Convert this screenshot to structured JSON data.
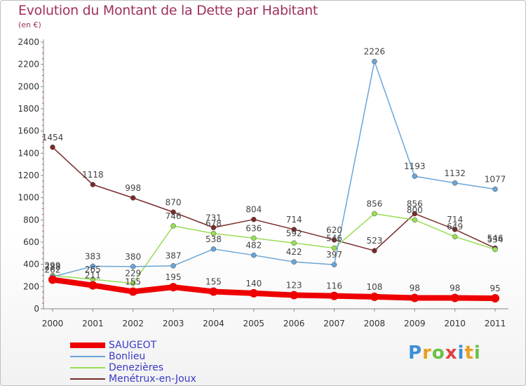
{
  "title": "Evolution du Montant de la Dette par Habitant",
  "subtitle": "(en €)",
  "logo": {
    "text": "Proxiti",
    "letters": [
      {
        "ch": "P",
        "color": "#3a8fd6"
      },
      {
        "ch": "r",
        "color": "#e8a020"
      },
      {
        "ch": "o",
        "color": "#6cc04a"
      },
      {
        "ch": "x",
        "color": "#e04040"
      },
      {
        "ch": "i",
        "color": "#3a8fd6"
      },
      {
        "ch": "t",
        "color": "#e8a020"
      },
      {
        "ch": "i",
        "color": "#6cc04a"
      }
    ]
  },
  "chart_data": {
    "type": "line",
    "title": "Evolution du Montant de la Dette par Habitant",
    "ylabel": "(en €)",
    "xlabel": "",
    "ylim": [
      0,
      2400
    ],
    "yticks": [
      0,
      200,
      400,
      600,
      800,
      1000,
      1200,
      1400,
      1600,
      1800,
      2000,
      2200,
      2400
    ],
    "categories": [
      "2000",
      "2001",
      "2002",
      "2003",
      "2004",
      "2005",
      "2006",
      "2007",
      "2008",
      "2009",
      "2010",
      "2011"
    ],
    "grid": false,
    "legend_position": "bottom-left",
    "series": [
      {
        "name": "SAUGEOT",
        "color": "#ee0000",
        "values": [
          262,
          211,
          155,
          195,
          155,
          140,
          123,
          116,
          108,
          98,
          98,
          95
        ]
      },
      {
        "name": "Bonlieu",
        "color": "#6aa6d8",
        "values": [
          288,
          383,
          380,
          387,
          538,
          482,
          422,
          397,
          2226,
          1193,
          1132,
          1077
        ]
      },
      {
        "name": "Denezières",
        "color": "#99dd55",
        "values": [
          299,
          265,
          229,
          746,
          678,
          636,
          592,
          546,
          856,
          800,
          649,
          534
        ]
      },
      {
        "name": "Menétrux-en-Joux",
        "color": "#7a2a2a",
        "values": [
          1454,
          1118,
          998,
          870,
          731,
          804,
          714,
          620,
          523,
          856,
          714,
          546
        ]
      }
    ]
  }
}
